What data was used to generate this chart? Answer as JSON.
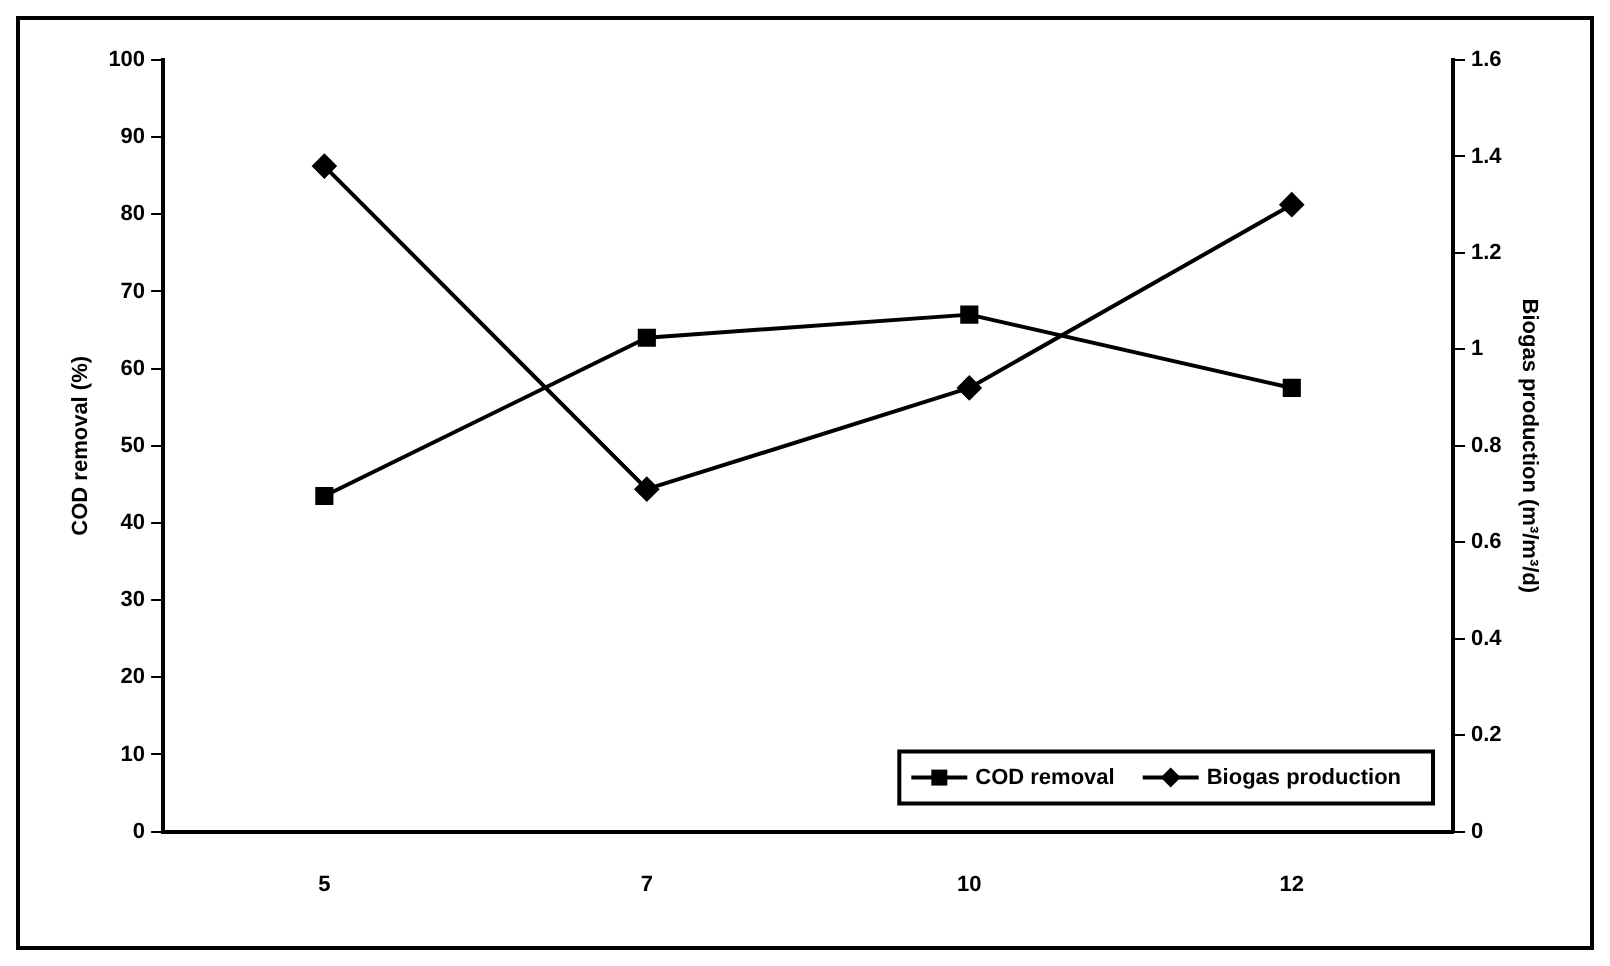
{
  "chart_data": {
    "type": "line",
    "categories": [
      "5",
      "7",
      "10",
      "12"
    ],
    "ylabel": "COD removal (%)",
    "y2label": "Biogas production (m³/m³/d)",
    "ylim": [
      0,
      100
    ],
    "yticks": [
      0,
      10,
      20,
      30,
      40,
      50,
      60,
      70,
      80,
      90,
      100
    ],
    "y2lim": [
      0,
      1.6
    ],
    "y2ticks": [
      0,
      0.2,
      0.4,
      0.6,
      0.8,
      1,
      1.2,
      1.4,
      1.6
    ],
    "grid": false,
    "legend": "bottom right",
    "line_style": "solid",
    "series": [
      {
        "name": "COD removal",
        "color": "#000000",
        "marker": "square",
        "values": [
          43.5,
          64,
          67,
          57.5
        ]
      },
      {
        "name": "Biogas production",
        "color": "#000000",
        "marker": "diamond",
        "axis": "y2",
        "values": [
          1.38,
          0.71,
          0.92,
          1.3
        ]
      }
    ]
  }
}
